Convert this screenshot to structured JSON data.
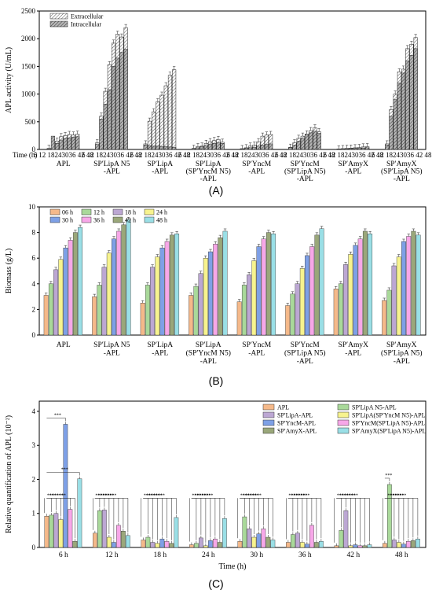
{
  "chart_data": [
    {
      "type": "bar",
      "panel": "(A)",
      "ylabel": "APL activity (U/mL)",
      "xlabel": "Time (h)",
      "ylim": [
        0,
        2500
      ],
      "yticks": [
        0,
        500,
        1000,
        1500,
        2000,
        2500
      ],
      "time_tick_label": "6 12 18243036 42 48",
      "legend": [
        "Extracellular",
        "Intracellular"
      ],
      "groups": [
        {
          "label": [
            "APL"
          ],
          "extracellular": [
            20,
            60,
            150,
            230,
            250,
            270,
            260,
            275
          ],
          "intracellular": [
            10,
            240,
            110,
            170,
            200,
            210,
            220,
            230
          ]
        },
        {
          "label": [
            "SP′LipA N5",
            "-APL"
          ],
          "extracellular": [
            120,
            600,
            1050,
            1530,
            1920,
            2080,
            2030,
            2200
          ],
          "intracellular": [
            90,
            550,
            820,
            1080,
            1500,
            1650,
            1750,
            1810
          ]
        },
        {
          "label": [
            "SP′LipA",
            "-APL"
          ],
          "extracellular": [
            100,
            510,
            680,
            860,
            980,
            1150,
            1340,
            1440
          ],
          "intracellular": [
            80,
            70,
            60,
            60,
            55,
            50,
            45,
            40
          ]
        },
        {
          "label": [
            "SP′LipA",
            "(SP′YncM N5)",
            "-APL"
          ],
          "extracellular": [
            20,
            50,
            60,
            110,
            140,
            160,
            180,
            130
          ],
          "intracellular": [
            15,
            30,
            50,
            70,
            90,
            110,
            120,
            110
          ]
        },
        {
          "label": [
            "SP′YncM",
            "-APL"
          ],
          "extracellular": [
            15,
            30,
            60,
            80,
            140,
            240,
            260,
            270
          ],
          "intracellular": [
            10,
            20,
            30,
            40,
            60,
            80,
            90,
            100
          ]
        },
        {
          "label": [
            "SP′YncM",
            "(SP′LipA N5)",
            "-APL"
          ],
          "extracellular": [
            40,
            120,
            200,
            240,
            280,
            340,
            390,
            320
          ],
          "intracellular": [
            30,
            80,
            150,
            200,
            260,
            300,
            330,
            290
          ]
        },
        {
          "label": [
            "SP′AmyX",
            "-APL"
          ],
          "extracellular": [
            10,
            15,
            20,
            25,
            30,
            35,
            45,
            50
          ],
          "intracellular": [
            8,
            10,
            12,
            15,
            18,
            20,
            25,
            30
          ]
        },
        {
          "label": [
            "SP′AmyX",
            "(SP′LipA N5)",
            "-APL"
          ],
          "extracellular": [
            100,
            720,
            1000,
            1400,
            1450,
            1820,
            1900,
            2020
          ],
          "intracellular": [
            80,
            600,
            900,
            1200,
            1380,
            1600,
            1700,
            1820
          ]
        }
      ]
    },
    {
      "type": "bar",
      "panel": "(B)",
      "ylabel": "Biomass (g/L)",
      "ylim": [
        0,
        10
      ],
      "yticks": [
        0,
        2,
        4,
        6,
        8,
        10
      ],
      "series_names": [
        "06 h",
        "12 h",
        "18 h",
        "24 h",
        "30 h",
        "36 h",
        "42 h",
        "48 h"
      ],
      "series_colors": [
        "#f5b98a",
        "#a9d99a",
        "#bca7d3",
        "#f7f38e",
        "#7ea0e6",
        "#f7a7e8",
        "#9aa77a",
        "#9adfe6"
      ],
      "groups": [
        {
          "label": [
            "APL"
          ],
          "values": [
            3.1,
            4.0,
            5.1,
            5.9,
            6.8,
            7.4,
            8.0,
            8.4
          ]
        },
        {
          "label": [
            "SP′LipA N5",
            "-APL"
          ],
          "values": [
            3.0,
            3.9,
            5.3,
            6.4,
            7.5,
            8.1,
            8.6,
            9.0
          ]
        },
        {
          "label": [
            "SP′LipA",
            "-APL"
          ],
          "values": [
            2.5,
            3.9,
            5.3,
            6.1,
            6.8,
            7.3,
            7.8,
            7.9
          ]
        },
        {
          "label": [
            "SP′LipA",
            "(SP′YncM N5)",
            "-APL"
          ],
          "values": [
            3.1,
            3.8,
            4.8,
            6.0,
            6.5,
            7.1,
            7.6,
            8.1
          ]
        },
        {
          "label": [
            "SP′YncM",
            "-APL"
          ],
          "values": [
            2.6,
            3.9,
            4.7,
            5.8,
            6.9,
            7.5,
            8.0,
            7.9
          ]
        },
        {
          "label": [
            "SP′YncM",
            "(SP′LipA N5)",
            "-APL"
          ],
          "values": [
            2.3,
            3.2,
            4.0,
            5.2,
            6.2,
            6.9,
            7.8,
            8.3
          ]
        },
        {
          "label": [
            "SP′AmyX",
            "-APL"
          ],
          "values": [
            3.6,
            4.0,
            5.5,
            6.3,
            7.0,
            7.5,
            8.1,
            7.9
          ]
        },
        {
          "label": [
            "SP′AmyX",
            "(SP′LipA N5)",
            "-APL"
          ],
          "values": [
            2.7,
            3.5,
            5.4,
            6.1,
            7.3,
            7.7,
            8.1,
            7.8
          ]
        }
      ]
    },
    {
      "type": "bar",
      "panel": "(C)",
      "ylabel": "Relative quantification of APL (10⁻²)",
      "xlabel": "Time (h)",
      "ylim": [
        0,
        4
      ],
      "yticks": [
        0,
        1,
        2,
        3,
        4
      ],
      "categories": [
        "6 h",
        "12 h",
        "18 h",
        "24 h",
        "30 h",
        "36 h",
        "42 h",
        "48 h"
      ],
      "significance": "***",
      "series": [
        {
          "name": "APL",
          "color": "#f5b98a",
          "values": [
            0.92,
            0.42,
            0.22,
            0.08,
            0.18,
            0.15,
            0.05,
            0.12
          ]
        },
        {
          "name": "SP′LipA N5-APL",
          "color": "#a9d99a",
          "values": [
            0.95,
            1.08,
            0.3,
            0.12,
            0.9,
            0.38,
            0.5,
            1.85
          ]
        },
        {
          "name": "SP′LipA-APL",
          "color": "#bca7d3",
          "values": [
            1.0,
            1.1,
            0.15,
            0.28,
            0.55,
            0.42,
            1.08,
            0.22
          ]
        },
        {
          "name": "SP′LipA(SP′YncM N5)-APL",
          "color": "#f7f38e",
          "values": [
            0.82,
            0.3,
            0.12,
            0.05,
            0.3,
            0.15,
            0.05,
            0.15
          ]
        },
        {
          "name": "SP′YncM-APL",
          "color": "#7ea0e6",
          "values": [
            3.62,
            0.15,
            0.25,
            0.2,
            0.4,
            0.1,
            0.08,
            0.1
          ]
        },
        {
          "name": "SP′YncM(SP′LipA N5)-APL",
          "color": "#f7a7e8",
          "values": [
            1.12,
            0.65,
            0.18,
            0.25,
            0.55,
            0.65,
            0.05,
            0.18
          ]
        },
        {
          "name": "SP′AmyX-APL",
          "color": "#9aa77a",
          "values": [
            0.18,
            0.48,
            0.12,
            0.15,
            0.3,
            0.15,
            0.05,
            0.2
          ]
        },
        {
          "name": "SP′AmyX(SP′LipA N5)-APL",
          "color": "#9adfe6",
          "values": [
            2.02,
            0.35,
            0.88,
            0.85,
            0.22,
            0.18,
            0.08,
            0.25
          ]
        }
      ]
    }
  ]
}
